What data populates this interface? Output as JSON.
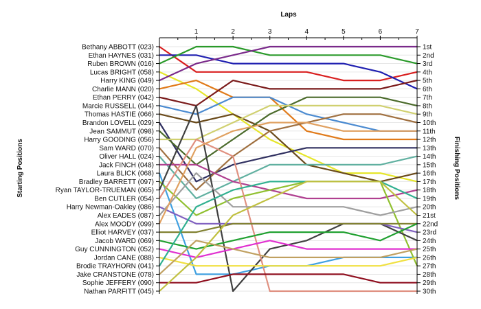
{
  "chart_data": {
    "type": "line",
    "title": "",
    "xlabel": "Laps",
    "ylabel_left": "Starting Positions",
    "ylabel_right": "Finishing Positions",
    "x": [
      0,
      1,
      2,
      3,
      4,
      5,
      6,
      7
    ],
    "x_tick_labels": [
      "1",
      "2",
      "3",
      "4",
      "5",
      "6",
      "7"
    ],
    "y_reversed": true,
    "ylim": [
      1,
      30
    ],
    "grid": true,
    "start_labels": [
      "Bethany ABBOTT (023)",
      "Ethan HAYNES (031)",
      "Ruben BROWN (016)",
      "Lucas BRIGHT (058)",
      "Harry KING (049)",
      "Charlie MANN (020)",
      "Ethan PERRY (042)",
      "Marcie RUSSELL (044)",
      "Thomas HASTIE (066)",
      "Brandon LOVELL (029)",
      "Jean SAMMUT (098)",
      "Harry GOODING (056)",
      "Sam WARD (070)",
      "Oliver HALL (024)",
      "Jack FINCH (048)",
      "Laura BLICK (068)",
      "Bradley BARRETT (097)",
      "Ryan TAYLOR-TRUEMAN (065)",
      "Ben CUTLER (054)",
      "Harry Newman-Oakley (086)",
      "Alex EADES (087)",
      "Alex MOODY (099)",
      "Elliot HARVEY (037)",
      "Jacob WARD (069)",
      "Guy CUNNINGTON (052)",
      "Jordan CANE (088)",
      "Brodie TRAYHORN (041)",
      "Jake CRANSTONE (078)",
      "Sophie JEFFERY (090)",
      "Nathan PARFITT (045)"
    ],
    "finish_labels": [
      "1st",
      "2nd",
      "3rd",
      "4th",
      "5th",
      "6th",
      "7th",
      "8th",
      "9th",
      "10th",
      "11th",
      "12th",
      "13th",
      "14th",
      "15th",
      "16th",
      "17th",
      "18th",
      "19th",
      "20th",
      "21st",
      "22nd",
      "23rd",
      "24th",
      "25th",
      "26th",
      "27th",
      "28th",
      "29th",
      "30th"
    ],
    "series": [
      {
        "color": "#d92020",
        "values": [
          1,
          4,
          4,
          4,
          4,
          5,
          5,
          4
        ]
      },
      {
        "color": "#1f1fb0",
        "values": [
          2,
          2,
          3,
          3,
          3,
          3,
          4,
          6
        ]
      },
      {
        "color": "#2a9a2a",
        "values": [
          3,
          1,
          1,
          2,
          2,
          2,
          2,
          3
        ]
      },
      {
        "color": "#e6e62a",
        "values": [
          4,
          6,
          9,
          12,
          14,
          16,
          16,
          17
        ]
      },
      {
        "color": "#7a2a8a",
        "values": [
          5,
          3,
          2,
          1,
          1,
          1,
          1,
          1
        ]
      },
      {
        "color": "#e07a1a",
        "values": [
          6,
          5,
          7,
          7,
          11,
          12,
          12,
          12
        ]
      },
      {
        "color": "#7a1a1a",
        "values": [
          7,
          8,
          5,
          6,
          6,
          6,
          6,
          5
        ]
      },
      {
        "color": "#4a8ad0",
        "values": [
          8,
          9,
          7,
          7,
          9,
          10,
          11,
          11
        ]
      },
      {
        "color": "#6a4a1a",
        "values": [
          9,
          10,
          9,
          11,
          15,
          16,
          17,
          16
        ]
      },
      {
        "color": "#303060",
        "values": [
          10,
          17,
          15,
          14,
          13,
          13,
          13,
          13
        ]
      },
      {
        "color": "#4a6a2a",
        "values": [
          11,
          15,
          12,
          9,
          7,
          7,
          7,
          8
        ]
      },
      {
        "color": "#d0d070",
        "values": [
          12,
          12,
          10,
          8,
          8,
          8,
          8,
          9
        ]
      },
      {
        "color": "#a07040",
        "values": [
          13,
          18,
          14,
          11,
          10,
          9,
          9,
          10
        ]
      },
      {
        "color": "#60b0a0",
        "values": [
          14,
          19,
          17,
          15,
          15,
          15,
          15,
          14
        ]
      },
      {
        "color": "#b04090",
        "values": [
          15,
          15,
          17,
          18,
          19,
          19,
          19,
          18
        ]
      },
      {
        "color": "#40a0e0",
        "values": [
          16,
          28,
          28,
          27,
          27,
          26,
          26,
          26
        ]
      },
      {
        "color": "#90c030",
        "values": [
          17,
          21,
          19,
          18,
          17,
          17,
          17,
          27
        ]
      },
      {
        "color": "#404040",
        "values": [
          18,
          8,
          30,
          25,
          24,
          22,
          22,
          24
        ]
      },
      {
        "color": "#e09080",
        "values": [
          19,
          12,
          14,
          30,
          30,
          30,
          30,
          30
        ]
      },
      {
        "color": "#8060c0",
        "values": [
          20,
          22,
          22,
          22,
          22,
          22,
          22,
          23
        ]
      },
      {
        "color": "#a0a0a0",
        "values": [
          21,
          16,
          20,
          20,
          20,
          20,
          21,
          20
        ]
      },
      {
        "color": "#e0a060",
        "values": [
          22,
          13,
          11,
          10,
          10,
          11,
          11,
          11
        ]
      },
      {
        "color": "#808030",
        "values": [
          23,
          23,
          22,
          22,
          22,
          22,
          22,
          22
        ]
      },
      {
        "color": "#20a030",
        "values": [
          24,
          25,
          24,
          23,
          23,
          23,
          24,
          22
        ]
      },
      {
        "color": "#e030d0",
        "values": [
          25,
          26,
          25,
          24,
          25,
          25,
          25,
          25
        ]
      },
      {
        "color": "#f0e040",
        "values": [
          26,
          27,
          27,
          27,
          27,
          27,
          27,
          26
        ]
      },
      {
        "color": "#30b090",
        "values": [
          27,
          20,
          18,
          17,
          17,
          17,
          17,
          19
        ]
      },
      {
        "color": "#c0a060",
        "values": [
          28,
          24,
          25,
          26,
          26,
          26,
          26,
          25
        ]
      },
      {
        "color": "#901020",
        "values": [
          29,
          29,
          28,
          28,
          28,
          28,
          29,
          29
        ]
      },
      {
        "color": "#c0c040",
        "values": [
          30,
          26,
          21,
          19,
          17,
          17,
          17,
          21
        ]
      }
    ]
  }
}
